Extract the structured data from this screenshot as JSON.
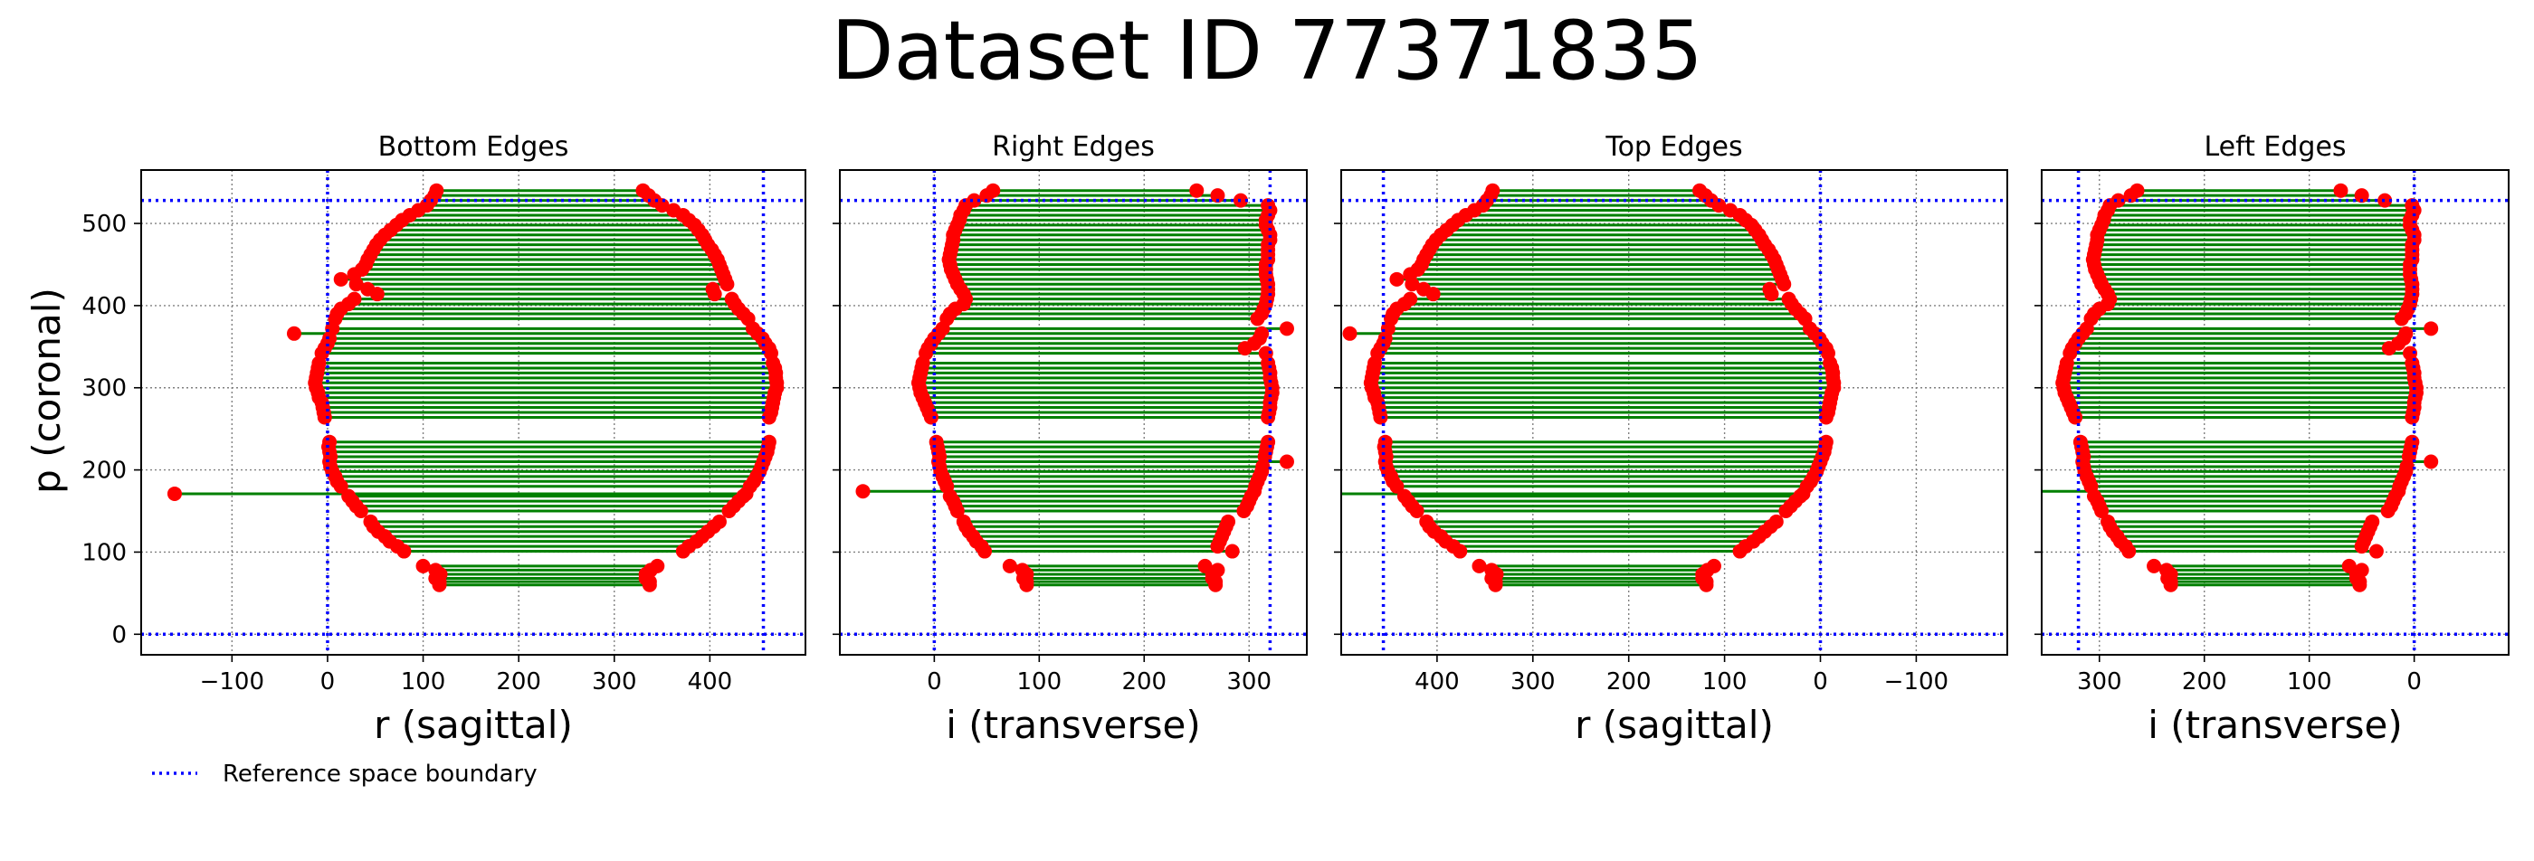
{
  "figure": {
    "title": "Dataset ID 77371835",
    "ylabel": "p (coronal)",
    "legend_label": "Reference space boundary"
  },
  "colors": {
    "edge_line": "#008000",
    "edge_marker": "#ff0000",
    "boundary": "#0000ff",
    "grid": "#808080"
  },
  "y_ticks": [
    {
      "value": 0,
      "label": "0"
    },
    {
      "value": 100,
      "label": "100"
    },
    {
      "value": 200,
      "label": "200"
    },
    {
      "value": 300,
      "label": "300"
    },
    {
      "value": 400,
      "label": "400"
    },
    {
      "value": 500,
      "label": "500"
    }
  ],
  "chart_data": [
    {
      "type": "line",
      "title": "Bottom Edges",
      "xlabel": "r (sagittal)",
      "xlim": [
        -195,
        500
      ],
      "ylim": [
        -25,
        565
      ],
      "x_inverted": false,
      "x_ticks": [
        {
          "value": -100,
          "label": "−100"
        },
        {
          "value": 0,
          "label": "0"
        },
        {
          "value": 100,
          "label": "100"
        },
        {
          "value": 200,
          "label": "200"
        },
        {
          "value": 300,
          "label": "300"
        },
        {
          "value": 400,
          "label": "400"
        }
      ],
      "boundary": {
        "x": [
          0,
          456
        ],
        "y": [
          0,
          528
        ]
      },
      "grid": true
    },
    {
      "type": "line",
      "title": "Right Edges",
      "xlabel": "i (transverse)",
      "xlim": [
        -90,
        355
      ],
      "ylim": [
        -25,
        565
      ],
      "x_inverted": false,
      "x_ticks": [
        {
          "value": 0,
          "label": "0"
        },
        {
          "value": 100,
          "label": "100"
        },
        {
          "value": 200,
          "label": "200"
        },
        {
          "value": 300,
          "label": "300"
        }
      ],
      "boundary": {
        "x": [
          0,
          320
        ],
        "y": [
          0,
          528
        ]
      },
      "grid": true
    },
    {
      "type": "line",
      "title": "Top Edges",
      "xlabel": "r (sagittal)",
      "xlim": [
        500,
        -195
      ],
      "ylim": [
        -25,
        565
      ],
      "x_inverted": true,
      "x_ticks": [
        {
          "value": 400,
          "label": "400"
        },
        {
          "value": 300,
          "label": "300"
        },
        {
          "value": 200,
          "label": "200"
        },
        {
          "value": 100,
          "label": "100"
        },
        {
          "value": 0,
          "label": "0"
        },
        {
          "value": -100,
          "label": "−100"
        }
      ],
      "boundary": {
        "x": [
          0,
          456
        ],
        "y": [
          0,
          528
        ]
      },
      "grid": true
    },
    {
      "type": "line",
      "title": "Left Edges",
      "xlabel": "i (transverse)",
      "xlim": [
        355,
        -90
      ],
      "ylim": [
        -25,
        565
      ],
      "x_inverted": true,
      "x_ticks": [
        {
          "value": 300,
          "label": "300"
        },
        {
          "value": 200,
          "label": "200"
        },
        {
          "value": 100,
          "label": "100"
        },
        {
          "value": 0,
          "label": "0"
        }
      ],
      "boundary": {
        "x": [
          0,
          320
        ],
        "y": [
          0,
          528
        ]
      },
      "grid": true
    }
  ],
  "edges_sagittal": [
    {
      "y": 60,
      "x1": 117,
      "x2": 337
    },
    {
      "y": 64,
      "x1": 117,
      "x2": 337
    },
    {
      "y": 68,
      "x1": 113,
      "x2": 333
    },
    {
      "y": 73,
      "x1": 118,
      "x2": 333
    },
    {
      "y": 78,
      "x1": 113,
      "x2": 338
    },
    {
      "y": 83,
      "x1": 100,
      "x2": 345
    },
    {
      "y": 101,
      "x1": 80,
      "x2": 372
    },
    {
      "y": 107,
      "x1": 73,
      "x2": 378
    },
    {
      "y": 113,
      "x1": 65,
      "x2": 386
    },
    {
      "y": 119,
      "x1": 60,
      "x2": 392
    },
    {
      "y": 125,
      "x1": 53,
      "x2": 398
    },
    {
      "y": 131,
      "x1": 48,
      "x2": 404
    },
    {
      "y": 137,
      "x1": 45,
      "x2": 410
    },
    {
      "y": 150,
      "x1": 35,
      "x2": 420
    },
    {
      "y": 156,
      "x1": 30,
      "x2": 425
    },
    {
      "y": 162,
      "x1": 26,
      "x2": 430
    },
    {
      "y": 168,
      "x1": 22,
      "x2": 435
    },
    {
      "y": 171,
      "x1": -160,
      "x2": 438
    },
    {
      "y": 180,
      "x1": 14,
      "x2": 442
    },
    {
      "y": 186,
      "x1": 10,
      "x2": 446
    },
    {
      "y": 192,
      "x1": 8,
      "x2": 449
    },
    {
      "y": 198,
      "x1": 5,
      "x2": 452
    },
    {
      "y": 204,
      "x1": 3,
      "x2": 454
    },
    {
      "y": 210,
      "x1": 2,
      "x2": 456
    },
    {
      "y": 216,
      "x1": 3,
      "x2": 458
    },
    {
      "y": 222,
      "x1": 2,
      "x2": 460
    },
    {
      "y": 228,
      "x1": 1,
      "x2": 461
    },
    {
      "y": 234,
      "x1": 2,
      "x2": 462
    },
    {
      "y": 264,
      "x1": -3,
      "x2": 462
    },
    {
      "y": 270,
      "x1": -4,
      "x2": 464
    },
    {
      "y": 276,
      "x1": -5,
      "x2": 465
    },
    {
      "y": 282,
      "x1": -6,
      "x2": 466
    },
    {
      "y": 288,
      "x1": -9,
      "x2": 467
    },
    {
      "y": 294,
      "x1": -10,
      "x2": 468
    },
    {
      "y": 300,
      "x1": -12,
      "x2": 470
    },
    {
      "y": 306,
      "x1": -13,
      "x2": 470
    },
    {
      "y": 312,
      "x1": -12,
      "x2": 469
    },
    {
      "y": 318,
      "x1": -11,
      "x2": 469
    },
    {
      "y": 324,
      "x1": -10,
      "x2": 468
    },
    {
      "y": 330,
      "x1": -9,
      "x2": 466
    },
    {
      "y": 342,
      "x1": -6,
      "x2": 464
    },
    {
      "y": 348,
      "x1": -3,
      "x2": 462
    },
    {
      "y": 354,
      "x1": 0,
      "x2": 458
    },
    {
      "y": 360,
      "x1": 2,
      "x2": 455
    },
    {
      "y": 366,
      "x1": -35,
      "x2": 450
    },
    {
      "y": 372,
      "x1": 5,
      "x2": 445
    },
    {
      "y": 384,
      "x1": 8,
      "x2": 440
    },
    {
      "y": 390,
      "x1": 10,
      "x2": 435
    },
    {
      "y": 396,
      "x1": 14,
      "x2": 430
    },
    {
      "y": 402,
      "x1": 22,
      "x2": 426
    },
    {
      "y": 408,
      "x1": 28,
      "x2": 423
    },
    {
      "y": 414,
      "x1": 52,
      "x2": 405
    },
    {
      "y": 420,
      "x1": 42,
      "x2": 403
    },
    {
      "y": 426,
      "x1": 30,
      "x2": 418
    },
    {
      "y": 432,
      "x1": 14,
      "x2": 416
    },
    {
      "y": 438,
      "x1": 28,
      "x2": 414
    },
    {
      "y": 444,
      "x1": 36,
      "x2": 412
    },
    {
      "y": 450,
      "x1": 40,
      "x2": 410
    },
    {
      "y": 456,
      "x1": 42,
      "x2": 408
    },
    {
      "y": 462,
      "x1": 45,
      "x2": 405
    },
    {
      "y": 468,
      "x1": 48,
      "x2": 402
    },
    {
      "y": 474,
      "x1": 51,
      "x2": 398
    },
    {
      "y": 480,
      "x1": 55,
      "x2": 395
    },
    {
      "y": 486,
      "x1": 60,
      "x2": 392
    },
    {
      "y": 492,
      "x1": 66,
      "x2": 388
    },
    {
      "y": 498,
      "x1": 72,
      "x2": 384
    },
    {
      "y": 504,
      "x1": 78,
      "x2": 378
    },
    {
      "y": 510,
      "x1": 86,
      "x2": 372
    },
    {
      "y": 516,
      "x1": 95,
      "x2": 362
    },
    {
      "y": 522,
      "x1": 104,
      "x2": 350
    },
    {
      "y": 528,
      "x1": 108,
      "x2": 342
    },
    {
      "y": 534,
      "x1": 112,
      "x2": 336
    },
    {
      "y": 540,
      "x1": 114,
      "x2": 330
    }
  ],
  "edges_transverse": [
    {
      "y": 60,
      "x1": 88,
      "x2": 268
    },
    {
      "y": 64,
      "x1": 88,
      "x2": 268
    },
    {
      "y": 68,
      "x1": 85,
      "x2": 265
    },
    {
      "y": 73,
      "x1": 88,
      "x2": 265
    },
    {
      "y": 78,
      "x1": 84,
      "x2": 270
    },
    {
      "y": 83,
      "x1": 72,
      "x2": 258
    },
    {
      "y": 101,
      "x1": 48,
      "x2": 284
    },
    {
      "y": 107,
      "x1": 45,
      "x2": 270
    },
    {
      "y": 113,
      "x1": 40,
      "x2": 272
    },
    {
      "y": 119,
      "x1": 37,
      "x2": 274
    },
    {
      "y": 125,
      "x1": 33,
      "x2": 276
    },
    {
      "y": 131,
      "x1": 30,
      "x2": 278
    },
    {
      "y": 137,
      "x1": 28,
      "x2": 280
    },
    {
      "y": 150,
      "x1": 22,
      "x2": 295
    },
    {
      "y": 156,
      "x1": 20,
      "x2": 298
    },
    {
      "y": 162,
      "x1": 18,
      "x2": 300
    },
    {
      "y": 168,
      "x1": 15,
      "x2": 302
    },
    {
      "y": 174,
      "x1": -68,
      "x2": 305
    },
    {
      "y": 180,
      "x1": 12,
      "x2": 306
    },
    {
      "y": 186,
      "x1": 10,
      "x2": 308
    },
    {
      "y": 192,
      "x1": 8,
      "x2": 310
    },
    {
      "y": 198,
      "x1": 6,
      "x2": 312
    },
    {
      "y": 204,
      "x1": 5,
      "x2": 313
    },
    {
      "y": 210,
      "x1": 4,
      "x2": 336
    },
    {
      "y": 216,
      "x1": 5,
      "x2": 315
    },
    {
      "y": 222,
      "x1": 4,
      "x2": 316
    },
    {
      "y": 228,
      "x1": 3,
      "x2": 317
    },
    {
      "y": 234,
      "x1": 2,
      "x2": 318
    },
    {
      "y": 264,
      "x1": -3,
      "x2": 318
    },
    {
      "y": 270,
      "x1": -5,
      "x2": 319
    },
    {
      "y": 276,
      "x1": -7,
      "x2": 320
    },
    {
      "y": 282,
      "x1": -9,
      "x2": 320
    },
    {
      "y": 288,
      "x1": -11,
      "x2": 321
    },
    {
      "y": 294,
      "x1": -13,
      "x2": 322
    },
    {
      "y": 300,
      "x1": -14,
      "x2": 322
    },
    {
      "y": 306,
      "x1": -15,
      "x2": 321
    },
    {
      "y": 312,
      "x1": -14,
      "x2": 320
    },
    {
      "y": 318,
      "x1": -13,
      "x2": 320
    },
    {
      "y": 324,
      "x1": -12,
      "x2": 319
    },
    {
      "y": 330,
      "x1": -11,
      "x2": 318
    },
    {
      "y": 342,
      "x1": -8,
      "x2": 316
    },
    {
      "y": 348,
      "x1": -6,
      "x2": 296
    },
    {
      "y": 354,
      "x1": -3,
      "x2": 305
    },
    {
      "y": 360,
      "x1": 0,
      "x2": 310
    },
    {
      "y": 366,
      "x1": 4,
      "x2": 312
    },
    {
      "y": 372,
      "x1": 8,
      "x2": 336
    },
    {
      "y": 384,
      "x1": 12,
      "x2": 308
    },
    {
      "y": 390,
      "x1": 15,
      "x2": 312
    },
    {
      "y": 396,
      "x1": 20,
      "x2": 314
    },
    {
      "y": 402,
      "x1": 28,
      "x2": 316
    },
    {
      "y": 408,
      "x1": 30,
      "x2": 317
    },
    {
      "y": 414,
      "x1": 28,
      "x2": 318
    },
    {
      "y": 420,
      "x1": 25,
      "x2": 318
    },
    {
      "y": 426,
      "x1": 22,
      "x2": 318
    },
    {
      "y": 432,
      "x1": 20,
      "x2": 317
    },
    {
      "y": 438,
      "x1": 18,
      "x2": 316
    },
    {
      "y": 444,
      "x1": 16,
      "x2": 316
    },
    {
      "y": 450,
      "x1": 15,
      "x2": 316
    },
    {
      "y": 456,
      "x1": 14,
      "x2": 318
    },
    {
      "y": 462,
      "x1": 15,
      "x2": 318
    },
    {
      "y": 468,
      "x1": 16,
      "x2": 318
    },
    {
      "y": 474,
      "x1": 17,
      "x2": 318
    },
    {
      "y": 480,
      "x1": 18,
      "x2": 320
    },
    {
      "y": 486,
      "x1": 18,
      "x2": 320
    },
    {
      "y": 492,
      "x1": 20,
      "x2": 318
    },
    {
      "y": 498,
      "x1": 22,
      "x2": 316
    },
    {
      "y": 504,
      "x1": 24,
      "x2": 316
    },
    {
      "y": 510,
      "x1": 25,
      "x2": 318
    },
    {
      "y": 516,
      "x1": 28,
      "x2": 320
    },
    {
      "y": 522,
      "x1": 30,
      "x2": 318
    },
    {
      "y": 528,
      "x1": 38,
      "x2": 292
    },
    {
      "y": 534,
      "x1": 50,
      "x2": 270
    },
    {
      "y": 540,
      "x1": 56,
      "x2": 250
    }
  ]
}
